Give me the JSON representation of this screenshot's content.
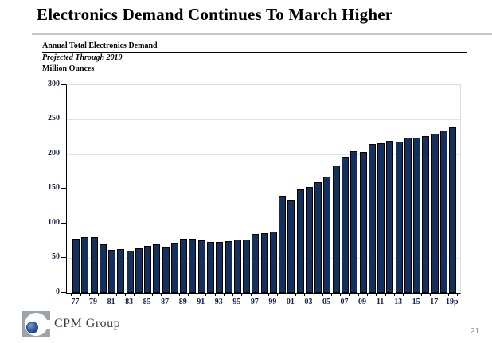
{
  "page": {
    "title": "Electronics Demand Continues To March Higher",
    "page_number": "21"
  },
  "chart_header": {
    "line1": "Annual Total Electronics Demand",
    "line2": "Projected Through 2019",
    "line3": "Million Ounces"
  },
  "footer": {
    "brand": "CPM Group"
  },
  "colors": {
    "bar_fill": "#14305c",
    "bar_border": "#000000",
    "gridline": "#d9e6f2",
    "frame": "#d7dde2",
    "axis": "#000000",
    "axis_label": "#16214d",
    "title_rule": "#c3c7ca"
  },
  "chart_data": {
    "type": "bar",
    "title": "Annual Total Electronics Demand",
    "subtitle": "Projected Through 2019",
    "ylabel": "Million Ounces",
    "ylim": [
      0,
      300
    ],
    "yticks": [
      0,
      50,
      100,
      150,
      200,
      250,
      300
    ],
    "grid": "horizontal",
    "legend": "none",
    "categories": [
      "77",
      "78",
      "79",
      "80",
      "81",
      "82",
      "83",
      "84",
      "85",
      "86",
      "87",
      "88",
      "89",
      "90",
      "91",
      "92",
      "93",
      "94",
      "95",
      "96",
      "97",
      "98",
      "99",
      "00",
      "01",
      "02",
      "03",
      "04",
      "05",
      "06",
      "07",
      "08",
      "09",
      "10",
      "11",
      "12",
      "13",
      "14",
      "15",
      "16",
      "17",
      "18",
      "19p"
    ],
    "values": [
      78,
      80,
      81,
      70,
      62,
      63,
      61,
      64,
      68,
      70,
      67,
      72,
      78,
      78,
      76,
      73,
      74,
      75,
      77,
      77,
      85,
      86,
      89,
      140,
      135,
      149,
      153,
      160,
      168,
      184,
      196,
      205,
      203,
      215,
      216,
      219,
      218,
      224,
      224,
      226,
      230,
      234,
      239
    ],
    "xtick_labels_shown": [
      "77",
      "79",
      "81",
      "83",
      "85",
      "87",
      "89",
      "91",
      "93",
      "95",
      "97",
      "99",
      "01",
      "03",
      "05",
      "07",
      "09",
      "11",
      "13",
      "15",
      "17",
      "19p"
    ]
  }
}
